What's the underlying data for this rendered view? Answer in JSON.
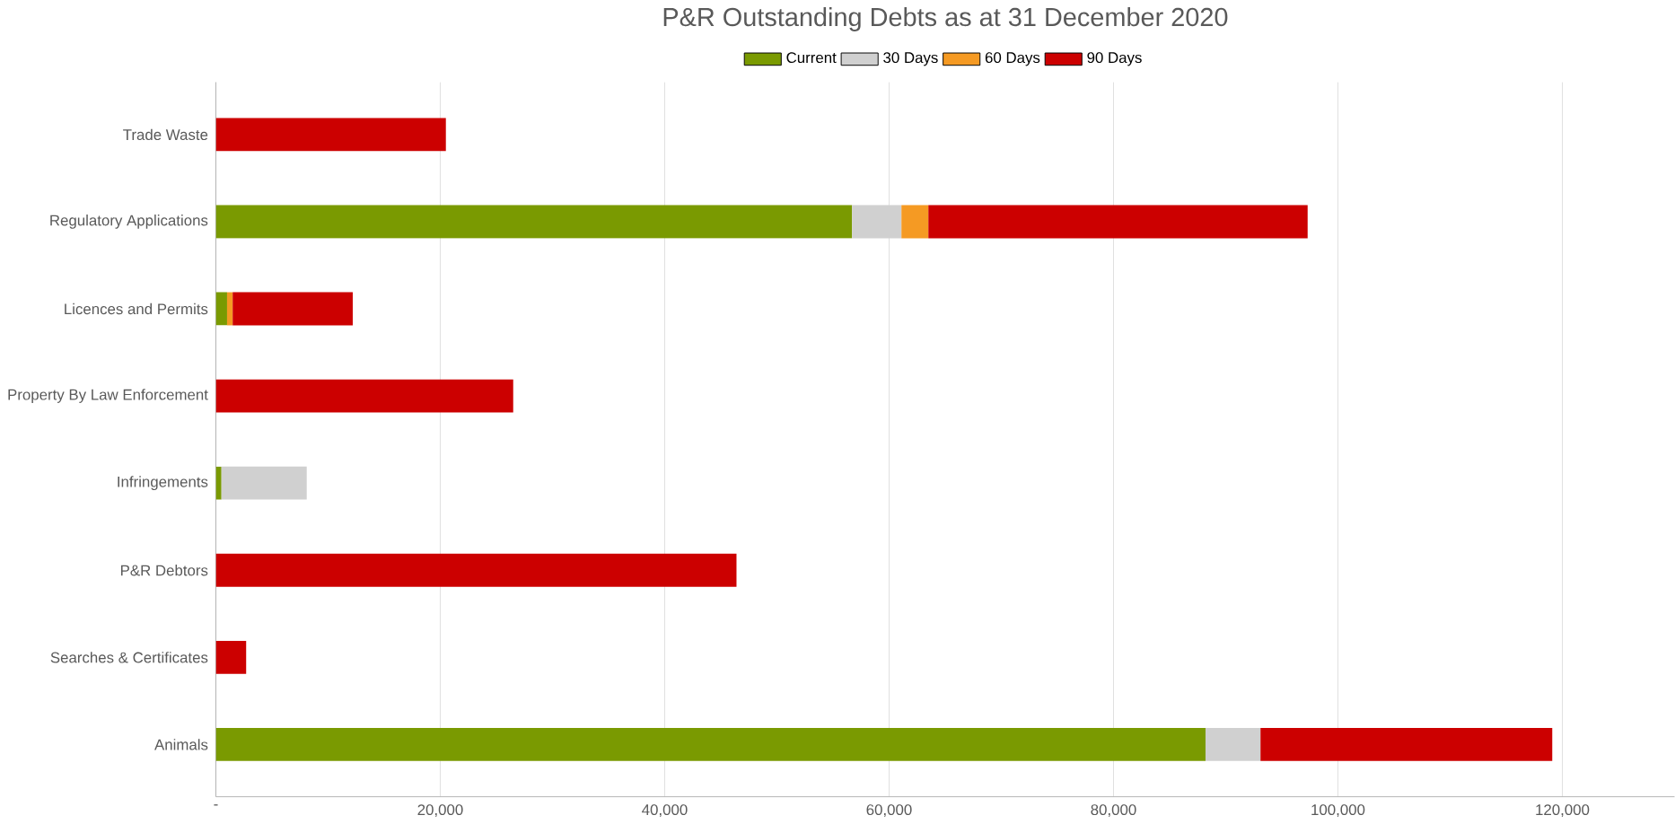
{
  "chart_data": {
    "type": "bar",
    "orientation": "horizontal",
    "stacked": true,
    "title": "P&R Outstanding Debts as at 31 December 2020",
    "categories": [
      "Trade Waste",
      "Regulatory Applications",
      "Licences and Permits",
      "Property By Law Enforcement",
      "Infringements",
      "P&R Debtors",
      "Searches & Certificates",
      "Animals"
    ],
    "series": [
      {
        "name": "Current",
        "color": "#7a9a01",
        "values": [
          null,
          56700,
          1000,
          null,
          500,
          null,
          null,
          88200
        ]
      },
      {
        "name": "30 Days",
        "color": "#d0d0d0",
        "values": [
          null,
          4400,
          null,
          null,
          7600,
          null,
          null,
          4900
        ]
      },
      {
        "name": "60 Days",
        "color": "#f59a23",
        "values": [
          null,
          2400,
          500,
          null,
          null,
          null,
          null,
          null
        ]
      },
      {
        "name": "90 Days",
        "color": "#cc0000",
        "values": [
          20500,
          33800,
          10700,
          26500,
          null,
          46400,
          2700,
          26000
        ]
      }
    ],
    "xlim": [
      0,
      130000
    ],
    "xticks": [
      {
        "value": 0,
        "label": "-"
      },
      {
        "value": 20000,
        "label": "20,000"
      },
      {
        "value": 40000,
        "label": "40,000"
      },
      {
        "value": 60000,
        "label": "60,000"
      },
      {
        "value": 80000,
        "label": "80,000"
      },
      {
        "value": 100000,
        "label": "100,000"
      },
      {
        "value": 120000,
        "label": "120,000"
      }
    ],
    "grid": "x",
    "legend": "top"
  }
}
